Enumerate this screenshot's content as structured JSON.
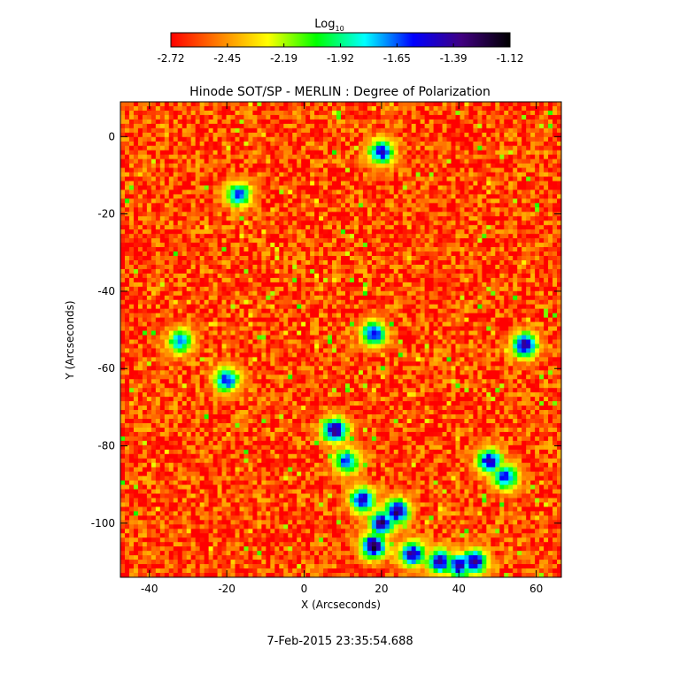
{
  "colorbar": {
    "label_main": "Log",
    "label_sub": "10",
    "ticks": [
      "-2.72",
      "-2.45",
      "-2.19",
      "-1.92",
      "-1.65",
      "-1.39",
      "-1.12"
    ],
    "range": [
      -2.72,
      -1.12
    ],
    "colors": [
      "#ff0000",
      "#ff8000",
      "#ffff00",
      "#00ff00",
      "#00ffff",
      "#0000ff",
      "#400080",
      "#000000"
    ]
  },
  "chart_data": {
    "type": "heatmap",
    "title": "Hinode SOT/SP - MERLIN : Degree of Polarization",
    "xlabel": "X (Arcseconds)",
    "ylabel": "Y (Arcseconds)",
    "xlim": [
      -47.5,
      66.5
    ],
    "ylim": [
      -114,
      9
    ],
    "xticks": [
      "-40",
      "-20",
      "0",
      "20",
      "40",
      "60"
    ],
    "yticks": [
      "0",
      "-20",
      "-40",
      "-60",
      "-80",
      "-100"
    ],
    "value_scale": "log10",
    "background_level": -2.6,
    "high_polarization_regions": [
      {
        "x": 20,
        "y": -100,
        "level": -1.3
      },
      {
        "x": 18,
        "y": -106,
        "level": -1.2
      },
      {
        "x": 24,
        "y": -97,
        "level": -1.3
      },
      {
        "x": 28,
        "y": -108,
        "level": -1.35
      },
      {
        "x": 35,
        "y": -110,
        "level": -1.4
      },
      {
        "x": 40,
        "y": -111,
        "level": -1.4
      },
      {
        "x": 8,
        "y": -76,
        "level": -1.3
      },
      {
        "x": 15,
        "y": -94,
        "level": -1.4
      },
      {
        "x": 48,
        "y": -84,
        "level": -1.4
      },
      {
        "x": 52,
        "y": -88,
        "level": -1.5
      },
      {
        "x": 57,
        "y": -54,
        "level": -1.35
      },
      {
        "x": 20,
        "y": -4,
        "level": -1.5
      },
      {
        "x": 18,
        "y": -51,
        "level": -1.5
      },
      {
        "x": -20,
        "y": -63,
        "level": -1.55
      },
      {
        "x": -17,
        "y": -15,
        "level": -1.6
      },
      {
        "x": 44,
        "y": -110,
        "level": -1.3
      },
      {
        "x": 11,
        "y": -84,
        "level": -1.6
      },
      {
        "x": -32,
        "y": -53,
        "level": -1.7
      }
    ]
  },
  "footer": {
    "timestamp": "7-Feb-2015 23:35:54.688"
  }
}
